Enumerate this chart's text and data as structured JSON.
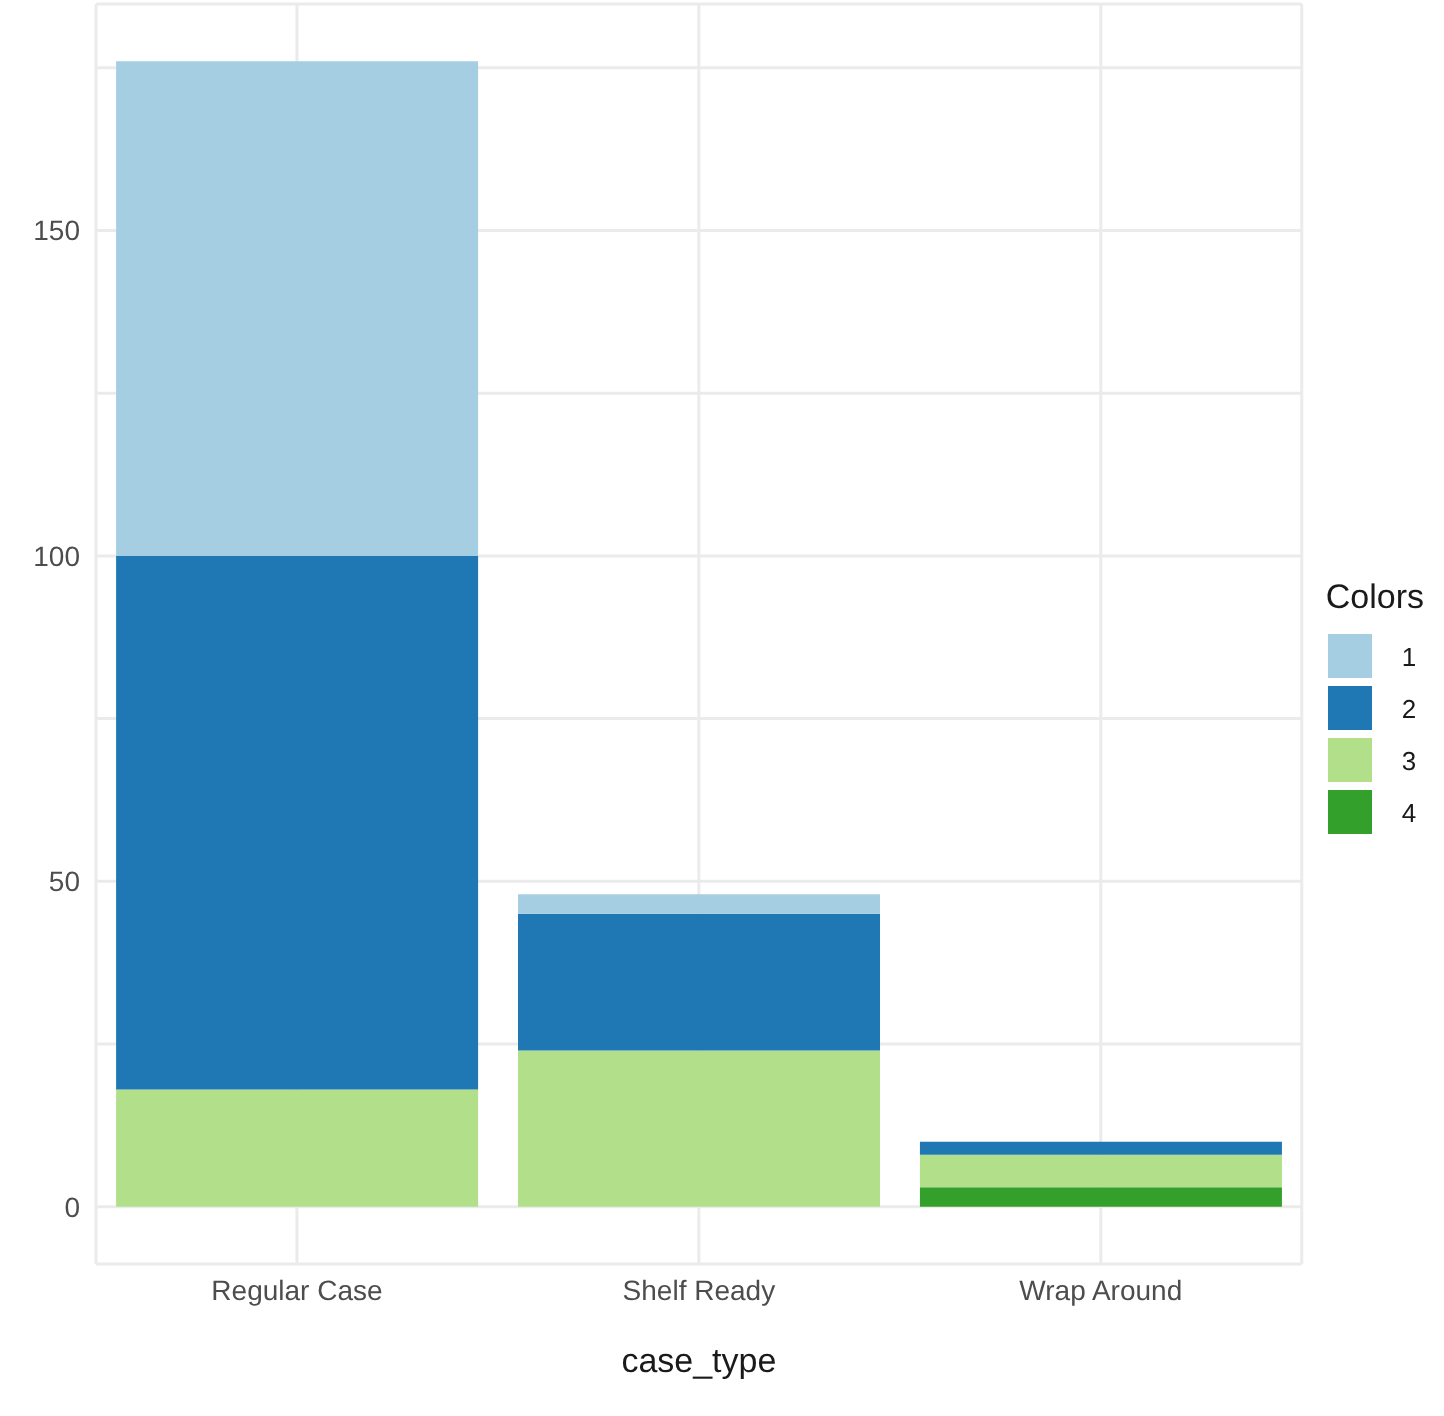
{
  "chart_data": {
    "type": "bar",
    "stacked": true,
    "xlabel": "case_type",
    "legend_title": "Colors",
    "categories": [
      "Regular Case",
      "Shelf Ready",
      "Wrap Around"
    ],
    "series": [
      {
        "name": "4",
        "color": "#33a02c",
        "values": [
          0,
          0,
          3
        ]
      },
      {
        "name": "3",
        "color": "#b2df8a",
        "values": [
          18,
          24,
          5
        ]
      },
      {
        "name": "2",
        "color": "#1f78b4",
        "values": [
          82,
          21,
          2
        ]
      },
      {
        "name": "1",
        "color": "#a6cee3",
        "values": [
          76,
          3,
          0
        ]
      }
    ],
    "ylim": [
      -8.8,
      184.8
    ],
    "yticks": [
      0,
      {
        "value": 25,
        "label": null
      },
      50,
      {
        "value": 75,
        "label": null
      },
      100,
      {
        "value": 125,
        "label": null
      },
      150,
      {
        "value": 175,
        "label": null
      }
    ],
    "grid": true,
    "legend": "right"
  }
}
